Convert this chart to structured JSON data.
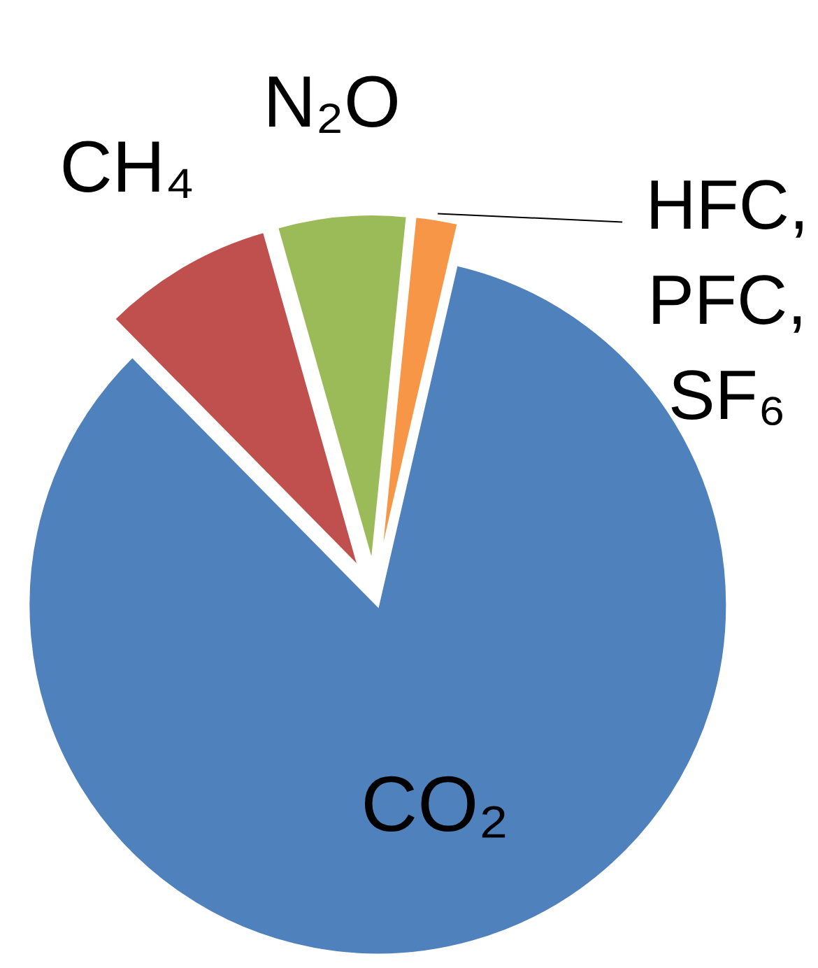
{
  "chart_data": {
    "type": "pie",
    "categories": [
      "CO₂",
      "CH₄",
      "N₂O",
      "HFC, PFC, SF₆"
    ],
    "values": [
      84,
      8,
      6,
      2
    ],
    "colors": [
      "#4f81bd",
      "#c0504d",
      "#9bbb59",
      "#f79646"
    ]
  }
}
